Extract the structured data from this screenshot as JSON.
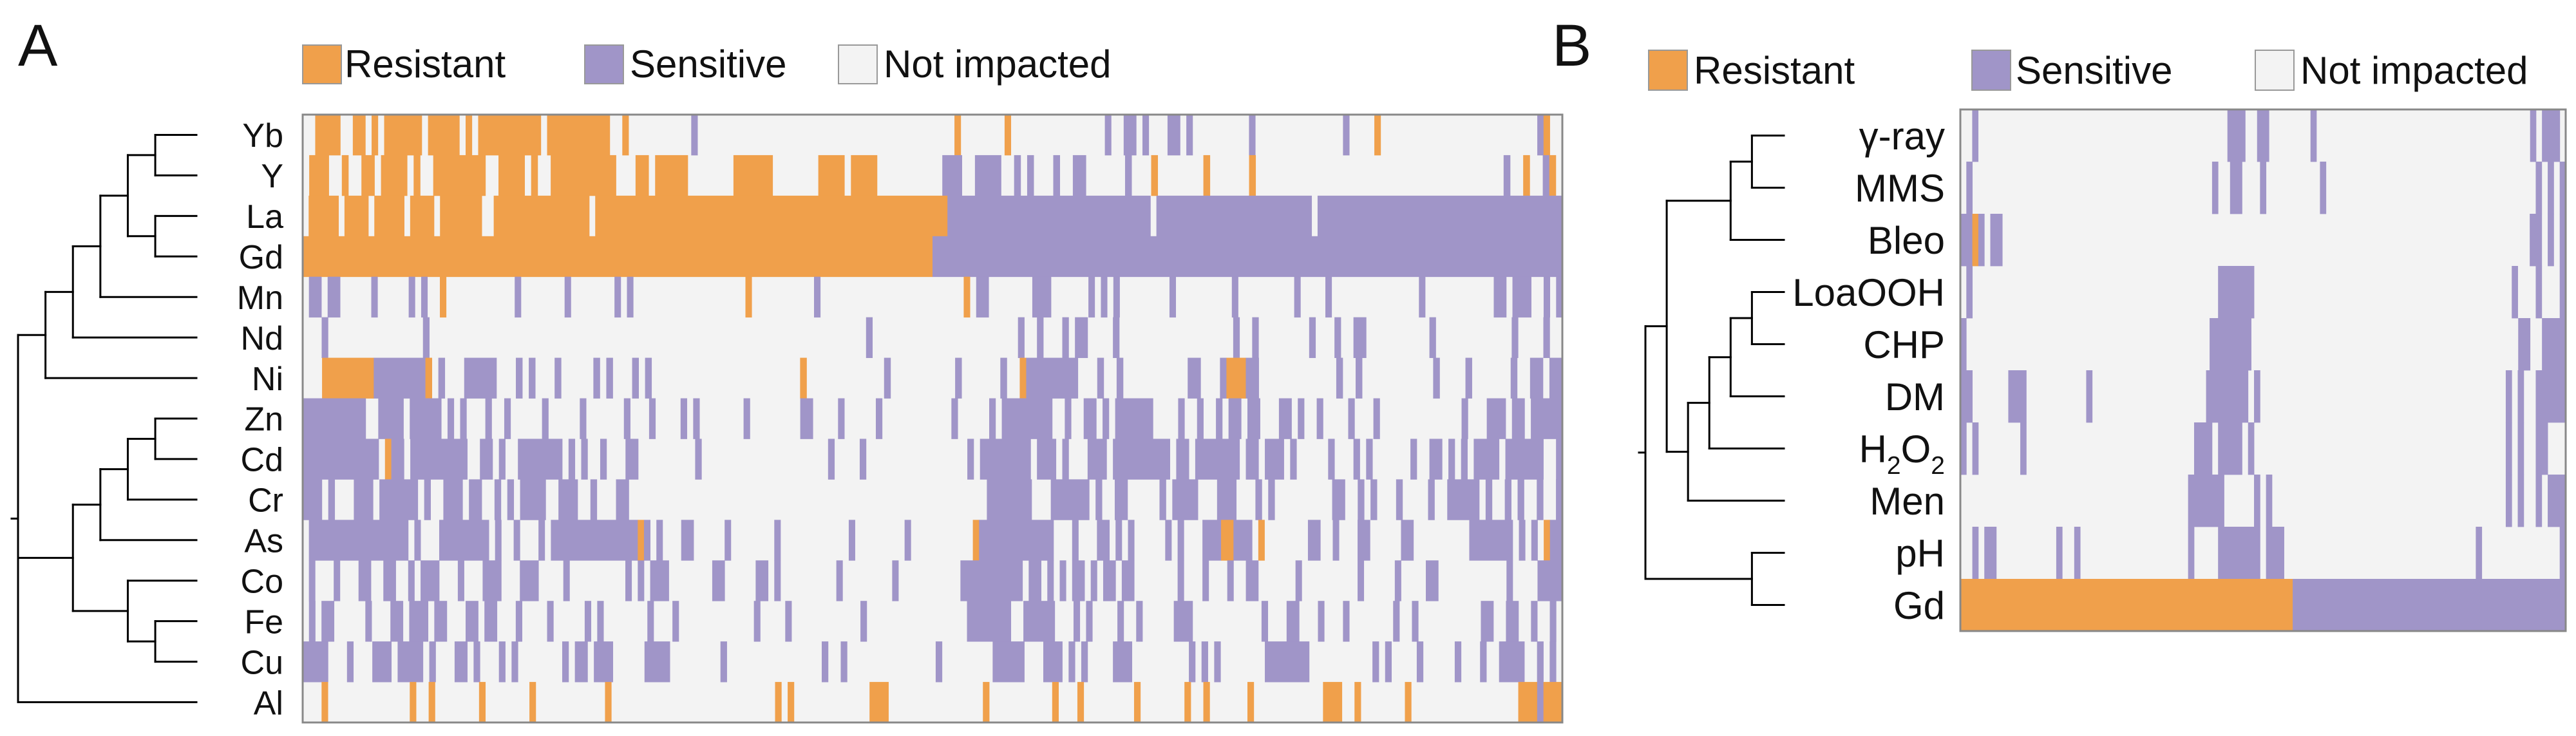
{
  "panel_labels": {
    "a": "A",
    "b": "B"
  },
  "colors": {
    "resistant": "#F0A04B",
    "sensitive": "#A095C8",
    "not_impacted": "#F3F3F3",
    "border": "#888888",
    "tree": "#000000"
  },
  "chart_data": [
    {
      "type": "heatmap",
      "panel": "A",
      "title": "",
      "legend": [
        {
          "key": "resistant",
          "label": "Resistant"
        },
        {
          "key": "sensitive",
          "label": "Sensitive"
        },
        {
          "key": "not_impacted",
          "label": "Not impacted"
        }
      ],
      "legend_placement": "top",
      "rows": [
        "Yb",
        "Y",
        "La",
        "Gd",
        "Mn",
        "Nd",
        "Ni",
        "Zn",
        "Cd",
        "Cr",
        "As",
        "Co",
        "Fe",
        "Cu",
        "Al"
      ],
      "columns": "strains (unlabeled)",
      "values": "R = resistant, S = sensitive, . = not impacted; one character per strain column",
      "row_values": [
        "..RRRR..RR.R.RRRRRR.RRRRR.R.RRRRRRRRRR.RRRRRRRRRR..R..........S.........................................R.......R...............S..SS.S...SS.S.........S..............S....R.........................SR..",
        ".RRR..R..RR.RRRR.R..RRRRRRRR..RRRR.R..RRRRRRRRRR...RR.RRRRR.......RRRRRR.......RRRR.RRRR..........SSS..SSSS..S.S...S..SS......S...R.......R......R......................................S..R..SR.",
        ".RRRRR.RRRR.RRRRR.RRRR.RRRRRRR..RRRRRRRRRRRRRRRR.RRRRRRRRRRRRRRRRRRRRRRRRRRRRRRRRRRRRRRRRRRRRRRRRRRRRRRRRRRRSSSSSSSSSSSSSSSSSSSSSSSSSSSSSSSSSS.SSSSSSSSSSSSSSSSSSSSSSSSSS.SSSSSSSSSSSSSSSSSSSSSSSSSSSSSSSSSSSSSSSSS",
        "RRRRRRRRRRRRRRRRRRRRRRRRRRRRRRRRRRRRRRRRRRRRRRRRRRRRRRRRRRRRRRRRRRRRRRRRRRRRRRRRRRRRRRRRRRRRRRRRRRRRRRRRRRRRRSSSSSSSSSSSSSSSSSSSSSSSSSSSSSSSSSSSSSSSSSSSSSSSSSSSSSSSSSSSSSSSSSSSSSSSSSSSSSSSSSSSSSSSSSSSSSSSSSSSSSSSSSSSSS",
        ".SS.SS.....S.....S.S..R...........S.......S.......S.S..................R..........S.......................R.SS.......SSS......S.S.S........S.........S.........S....S..............S...........SS.SSS..S.S",
        "...S...............S.....................................................................S.......................S..S...S.SS....S..................S..S........S...S..SS..........S............S....S..",
        "...RRRRRRRRSSSSSSSSR.S...SSSSS...S.S...S.....S.S...S.S.......................R............S..........S......S..RSSSSSSSS...S..S..........SS...SRRRSS............S..S...........S....S......S..SS.SS",
        "SSSSSSSSSS..SSSS.SSSSS.S.S...S..S.....S.....S......S...S....S.S.......S........SS....S.....S...........S.....S.SSSSSSSS..S..SS.S.SSSSSS....S..S..S.SS.SS...SS.S..S....S...S.............S...SSS.SS.SSSSS",
        "SSSSSSSSSSSS.RSS.SSSSSSSSS..SS.S..SSSSSSS.S.S..S...SS.........S....................S....S................S.SSSSSSSS.SSS.S...SSS.SSSSSSSSS.SS.SSSSSSS.SS.SSS.S.....S...S.S......S..SS.S.S.SSSS.SSSSSS..S",
        "SSS.S...SSS.SSSSSS.S..SSS.SS..S.S.SSSS..SSS..S...SS........................................................SSSSSSS...SSSSSS.S..SS.....S.SSSS...SSS...S.S.........SS..S.S...S....S..SSSSS.S..S.S..S..S",
        ".SSSSSSSSSSSSSSSS.S...SSSSSSSS.S..S...S.SSSSSSSSSSSSSSRS.S...SS.....S.......S...........S........S..........RSSSSSSSSSSSS...S...SS.S.S.....S.S...SSSRRSSS.R.......SS..S...SS.....SS.........SSSSSSS.S.S.RSS",
        ".S...S...SS..SS..S.SSS...S...SSS...SSS....S.........S.S.SSS.......SS.....SS.S.........S........S..........SSSSSSSSSS.SS.S.S.SS.S.SS.SS.......S...S...S..SS......S.........S.....S....SS...........S....SSSS",
        ".S.SS.....S...SS.SSS.SS...SS.SS...S....S.....S.S.......S...S............S....S...........S................SSSSSSS..SSSSS...S.S....S..S.....SSS...........S...SS...S...S.......S..S..........SS..SS..S..S.",
        "SSSS...S...SSS.SSSS.S...SS.S...S.S.......S.SS.SSS.....SSSS........S...............S..S..............S........SSSSS...SSS.S.S....SSS.........S.S.S.......SSSSSSS..........S.S....S.....S...S..SSSS..S.S.",
        "...R.............R..R.......R.......R...........R..........................R.R............RRR...............R..........R...R........R.......R..R......R...........RRR..R.......R.................RRRSRRR"
      ],
      "dendrogram": "(((((Yb,Y),(La,Gd)),Mn),Nd),Ni),((((Zn,Cd),Cr),As),(Co,(Fe,Cu))),Al"
    },
    {
      "type": "heatmap",
      "panel": "B",
      "title": "",
      "legend": [
        {
          "key": "resistant",
          "label": "Resistant"
        },
        {
          "key": "sensitive",
          "label": "Sensitive"
        },
        {
          "key": "not_impacted",
          "label": "Not impacted"
        }
      ],
      "legend_placement": "top",
      "rows": [
        "γ-ray",
        "MMS",
        "Bleo",
        "LoaOOH",
        "CHP",
        "DM",
        "H2O2",
        "Men",
        "pH",
        "Gd"
      ],
      "row_label_parts": [
        {
          "base": "γ-ray"
        },
        {
          "base": "MMS"
        },
        {
          "base": "Bleo"
        },
        {
          "base": "LoaOOH"
        },
        {
          "base": "CHP"
        },
        {
          "base": "DM"
        },
        {
          "base": "H",
          "sub": "2",
          "mid": "O",
          "sub2": "2"
        },
        {
          "base": "Men"
        },
        {
          "base": "pH"
        },
        {
          "base": "Gd"
        }
      ],
      "columns": "strains (unlabeled)",
      "values": "R = resistant, S = sensitive, . = not impacted; one character per strain column",
      "row_values": [
        "..S..........................................SSS..SS.......S....................................S.SSS.",
        ".S........................................S..SS...S.........S...................................S.S.S",
        "SSRS.SS........................................................................................SS.S.S",
        ".S.........................................SSSSSS...........................................S...S...S",
        "S.........................................SSSSSSS.............................................SS..SSSS",
        "SS......SSS..........S...................SSSSSSS.S.........................................S.S..SSSSS",
        "S.S.......S............................SSS.SSSS.S..........................................S.S..SS...",
        "......................................SSSSSS.....S.S.......................................S.S..S.SSS",
        "..S.SS..........S..S..................S....SSSSSSS.SSS................................S.............S",
        "RRRRRRRRRRRRRRRRRRRRRRRRRRRRRRRRRRRRRRRRRRRRRRRRRRRRRRRRSSSSSSSSSSSSSSSSSSSSSSSSSSSSSSSSSSSSSSSSSSSSSS"
      ],
      "dendrogram": "((((γ-ray,MMS),Bleo),((((LoaOOH,CHP),DM),H2O2),Men)),(pH,Gd))"
    }
  ]
}
